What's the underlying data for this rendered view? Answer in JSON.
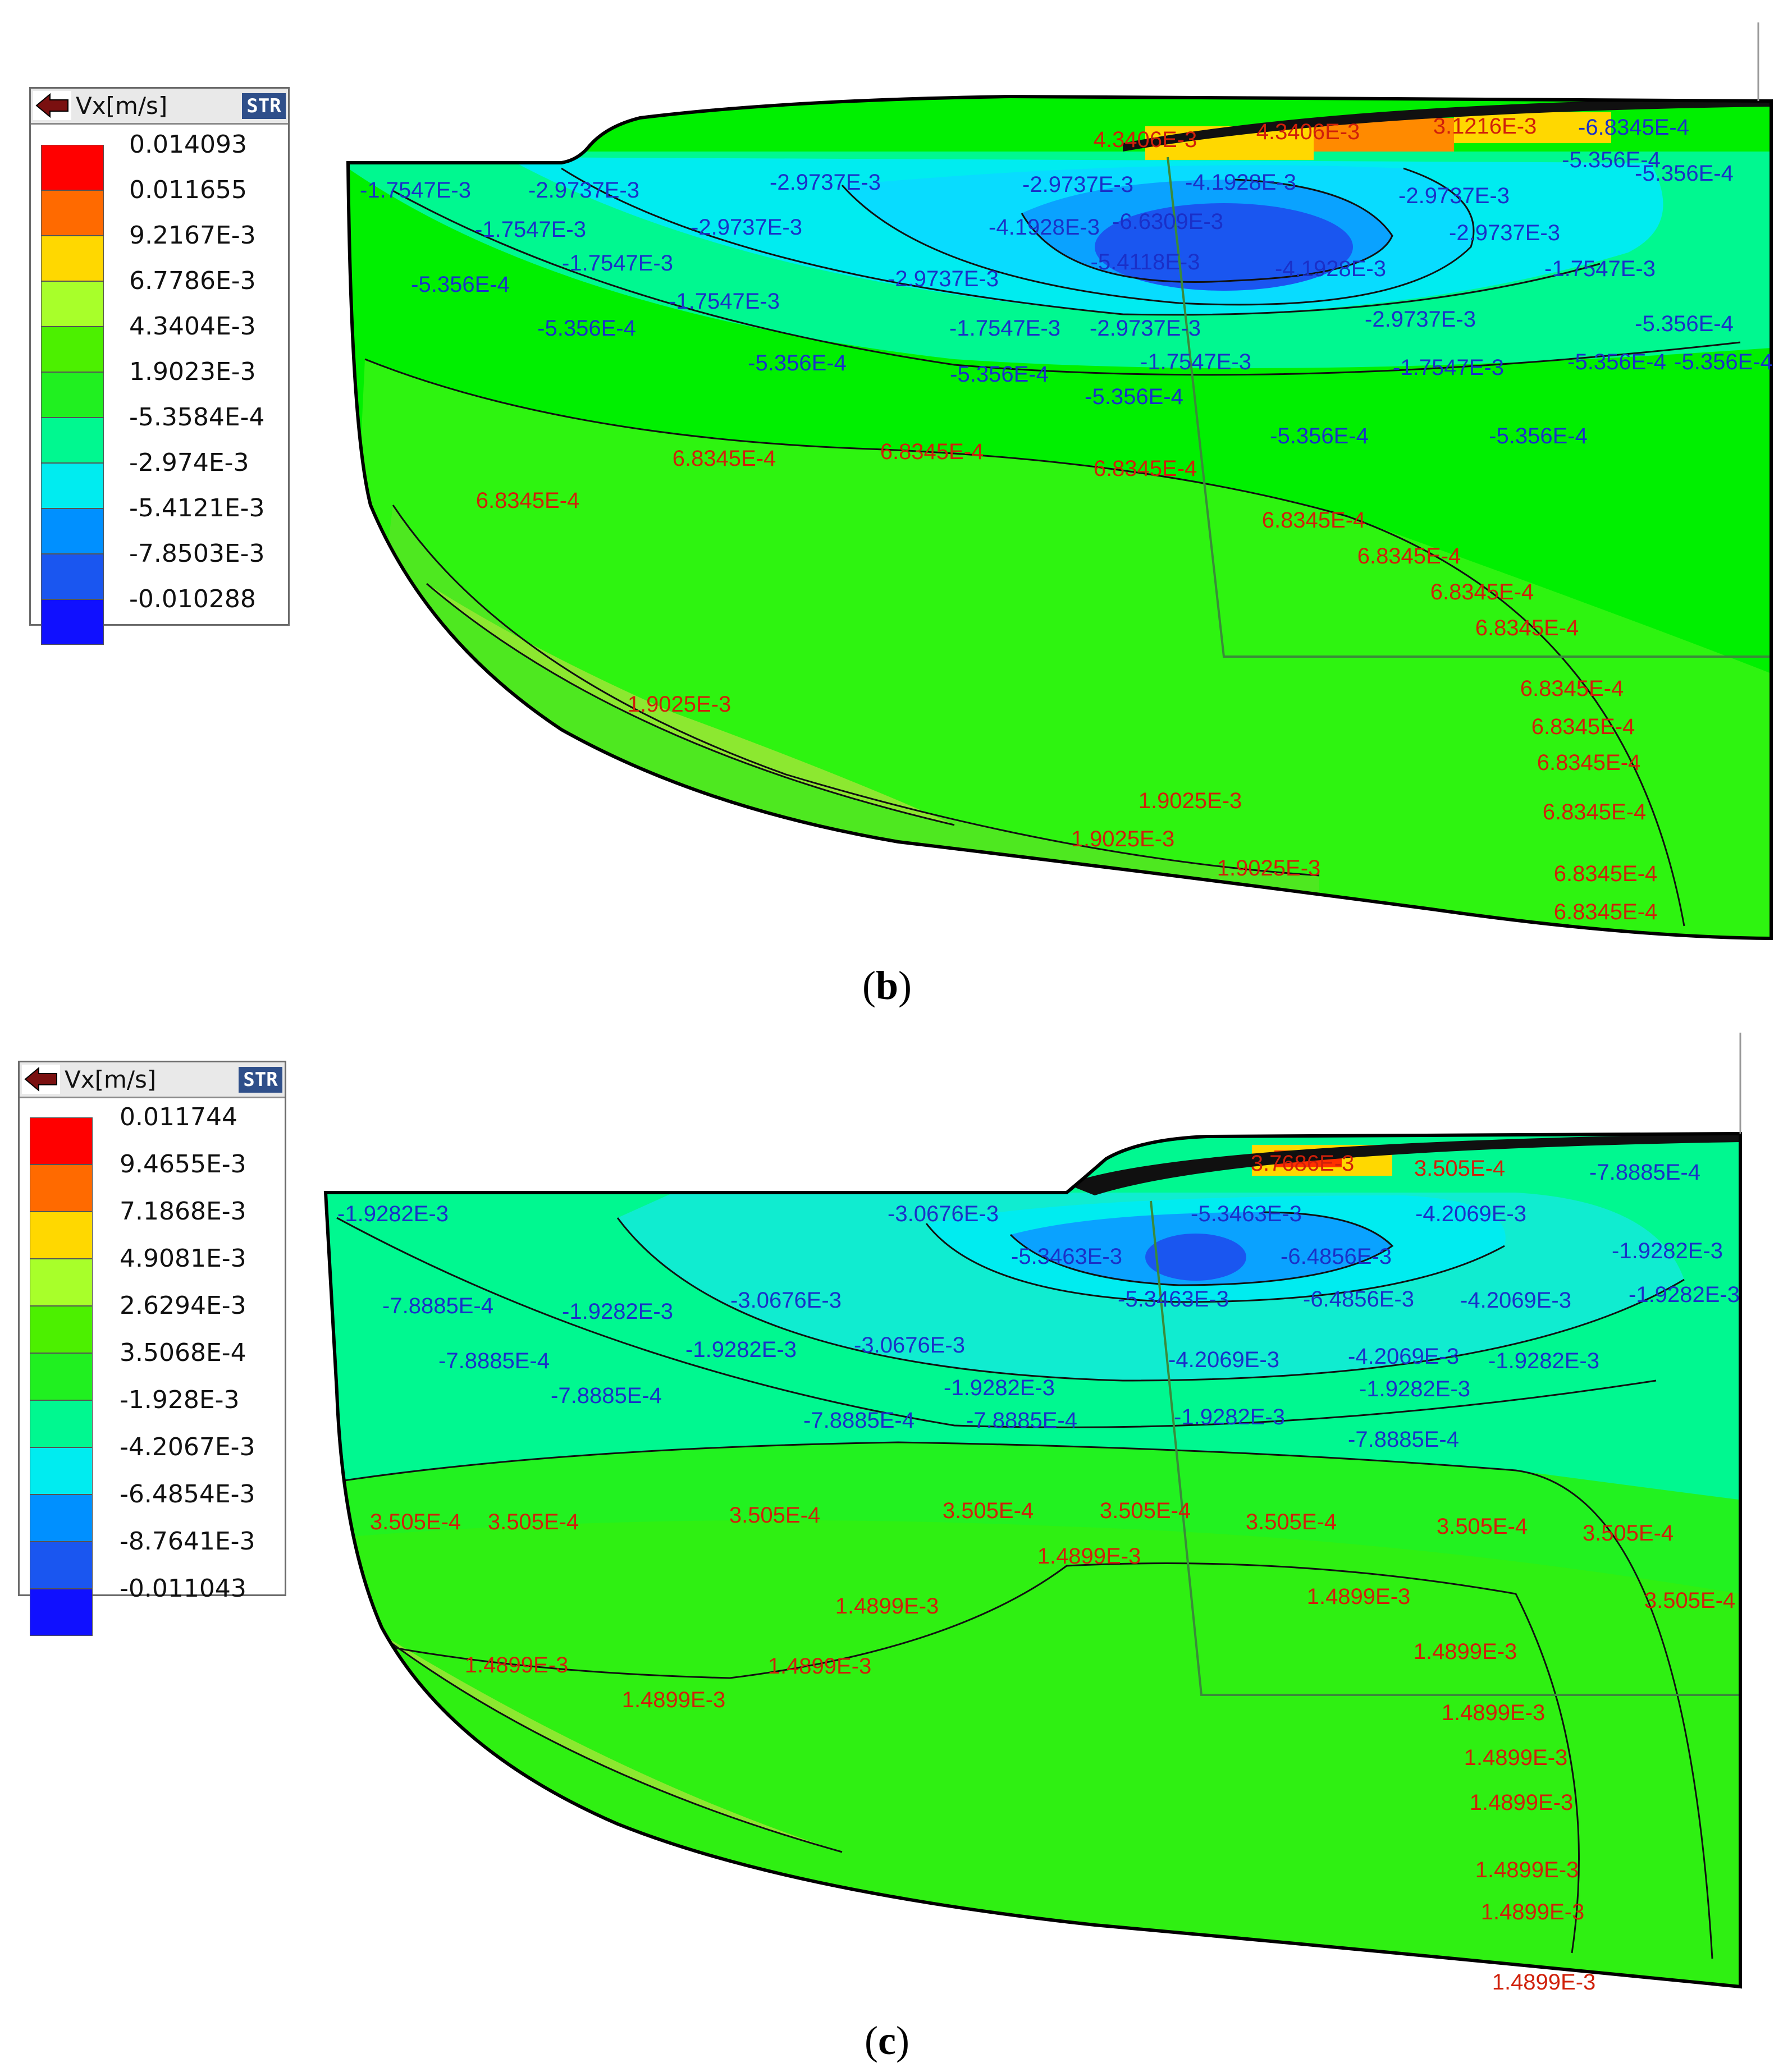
{
  "panels": [
    {
      "caption": "b",
      "legend": {
        "title": "Vx[m/s]",
        "str_button": "STR",
        "levels": [
          "0.014093",
          "0.011655",
          "9.2167E-3",
          "6.7786E-3",
          "4.3404E-3",
          "1.9023E-3",
          "-5.3584E-4",
          "-2.974E-3",
          "-5.4121E-3",
          "-7.8503E-3",
          "-0.010288"
        ],
        "colors": [
          "#ff0000",
          "#ff6a00",
          "#ffd800",
          "#a8ff2a",
          "#4cf000",
          "#20f020",
          "#00f890",
          "#00ecf0",
          "#0090ff",
          "#1a56f0",
          "#1010ff"
        ]
      },
      "contour_labels": [
        {
          "text": "4.3406E-3",
          "color": "#d0200a"
        },
        {
          "text": "4.3406E-3",
          "color": "#d0200a"
        },
        {
          "text": "3.1216E-3",
          "color": "#d0200a"
        },
        {
          "text": "-6.8345E-4",
          "color": "#1a30c8"
        },
        {
          "text": "-5.356E-4",
          "color": "#1a30c8"
        },
        {
          "text": "-5.356E-4",
          "color": "#1a30c8"
        },
        {
          "text": "-1.7547E-3",
          "color": "#1a30c8"
        },
        {
          "text": "-2.9737E-3",
          "color": "#1a30c8"
        },
        {
          "text": "-2.9737E-3",
          "color": "#1a30c8"
        },
        {
          "text": "-2.9737E-3",
          "color": "#1a30c8"
        },
        {
          "text": "-4.1928E-3",
          "color": "#1a30c8"
        },
        {
          "text": "-2.9737E-3",
          "color": "#1a30c8"
        },
        {
          "text": "-1.7547E-3",
          "color": "#1a30c8"
        },
        {
          "text": "-2.9737E-3",
          "color": "#1a30c8"
        },
        {
          "text": "-4.1928E-3",
          "color": "#1a30c8"
        },
        {
          "text": "-6.6309E-3",
          "color": "#1a30c8"
        },
        {
          "text": "-2.9737E-3",
          "color": "#1a30c8"
        },
        {
          "text": "-5.356E-4",
          "color": "#1a30c8"
        },
        {
          "text": "-1.7547E-3",
          "color": "#1a30c8"
        },
        {
          "text": "-2.9737E-3",
          "color": "#1a30c8"
        },
        {
          "text": "-5.4118E-3",
          "color": "#1a30c8"
        },
        {
          "text": "-4.1928E-3",
          "color": "#1a30c8"
        },
        {
          "text": "-1.7547E-3",
          "color": "#1a30c8"
        },
        {
          "text": "-1.7547E-3",
          "color": "#1a30c8"
        },
        {
          "text": "-1.7547E-3",
          "color": "#1a30c8"
        },
        {
          "text": "-2.9737E-3",
          "color": "#1a30c8"
        },
        {
          "text": "-2.9737E-3",
          "color": "#1a30c8"
        },
        {
          "text": "-5.356E-4",
          "color": "#1a30c8"
        },
        {
          "text": "-5.356E-4",
          "color": "#1a30c8"
        },
        {
          "text": "-1.7547E-3",
          "color": "#1a30c8"
        },
        {
          "text": "-1.7547E-3",
          "color": "#1a30c8"
        },
        {
          "text": "-5.356E-4",
          "color": "#1a30c8"
        },
        {
          "text": "-5.356E-4",
          "color": "#1a30c8"
        },
        {
          "text": "-5.356E-4",
          "color": "#1a30c8"
        },
        {
          "text": "-5.356E-4",
          "color": "#1a30c8"
        },
        {
          "text": "-5.356E-4",
          "color": "#1a30c8"
        },
        {
          "text": "-5.356E-4",
          "color": "#1a30c8"
        },
        {
          "text": "-5.356E-4",
          "color": "#1a30c8"
        },
        {
          "text": "6.8345E-4",
          "color": "#d0200a"
        },
        {
          "text": "6.8345E-4",
          "color": "#d0200a"
        },
        {
          "text": "6.8345E-4",
          "color": "#d0200a"
        },
        {
          "text": "6.8345E-4",
          "color": "#d0200a"
        },
        {
          "text": "6.8345E-4",
          "color": "#d0200a"
        },
        {
          "text": "6.8345E-4",
          "color": "#d0200a"
        },
        {
          "text": "6.8345E-4",
          "color": "#d0200a"
        },
        {
          "text": "6.8345E-4",
          "color": "#d0200a"
        },
        {
          "text": "6.8345E-4",
          "color": "#d0200a"
        },
        {
          "text": "6.8345E-4",
          "color": "#d0200a"
        },
        {
          "text": "6.8345E-4",
          "color": "#d0200a"
        },
        {
          "text": "6.8345E-4",
          "color": "#d0200a"
        },
        {
          "text": "6.8345E-4",
          "color": "#d0200a"
        },
        {
          "text": "6.8345E-4",
          "color": "#d0200a"
        },
        {
          "text": "1.9025E-3",
          "color": "#d0200a"
        },
        {
          "text": "1.9025E-3",
          "color": "#d0200a"
        },
        {
          "text": "1.9025E-3",
          "color": "#d0200a"
        },
        {
          "text": "1.9025E-3",
          "color": "#d0200a"
        }
      ]
    },
    {
      "caption": "c",
      "legend": {
        "title": "Vx[m/s]",
        "str_button": "STR",
        "levels": [
          "0.011744",
          "9.4655E-3",
          "7.1868E-3",
          "4.9081E-3",
          "2.6294E-3",
          "3.5068E-4",
          "-1.928E-3",
          "-4.2067E-3",
          "-6.4854E-3",
          "-8.7641E-3",
          "-0.011043"
        ],
        "colors": [
          "#ff0000",
          "#ff6a00",
          "#ffd800",
          "#a8ff2a",
          "#4cf000",
          "#20f020",
          "#00f890",
          "#00ecf0",
          "#0090ff",
          "#1a56f0",
          "#1010ff"
        ]
      },
      "contour_labels": [
        {
          "text": "3.7686E-3",
          "color": "#d0200a"
        },
        {
          "text": "3.505E-4",
          "color": "#d0200a"
        },
        {
          "text": "-7.8885E-4",
          "color": "#1a30c8"
        },
        {
          "text": "-1.9282E-3",
          "color": "#1a30c8"
        },
        {
          "text": "-3.0676E-3",
          "color": "#1a30c8"
        },
        {
          "text": "-5.3463E-3",
          "color": "#1a30c8"
        },
        {
          "text": "-4.2069E-3",
          "color": "#1a30c8"
        },
        {
          "text": "-5.3463E-3",
          "color": "#1a30c8"
        },
        {
          "text": "-6.4856E-3",
          "color": "#1a30c8"
        },
        {
          "text": "-1.9282E-3",
          "color": "#1a30c8"
        },
        {
          "text": "-7.8885E-4",
          "color": "#1a30c8"
        },
        {
          "text": "-1.9282E-3",
          "color": "#1a30c8"
        },
        {
          "text": "-3.0676E-3",
          "color": "#1a30c8"
        },
        {
          "text": "-5.3463E-3",
          "color": "#1a30c8"
        },
        {
          "text": "-6.4856E-3",
          "color": "#1a30c8"
        },
        {
          "text": "-4.2069E-3",
          "color": "#1a30c8"
        },
        {
          "text": "-1.9282E-3",
          "color": "#1a30c8"
        },
        {
          "text": "-7.8885E-4",
          "color": "#1a30c8"
        },
        {
          "text": "-1.9282E-3",
          "color": "#1a30c8"
        },
        {
          "text": "-3.0676E-3",
          "color": "#1a30c8"
        },
        {
          "text": "-4.2069E-3",
          "color": "#1a30c8"
        },
        {
          "text": "-4.2069E-3",
          "color": "#1a30c8"
        },
        {
          "text": "-1.9282E-3",
          "color": "#1a30c8"
        },
        {
          "text": "-7.8885E-4",
          "color": "#1a30c8"
        },
        {
          "text": "-1.9282E-3",
          "color": "#1a30c8"
        },
        {
          "text": "-1.9282E-3",
          "color": "#1a30c8"
        },
        {
          "text": "-7.8885E-4",
          "color": "#1a30c8"
        },
        {
          "text": "-7.8885E-4",
          "color": "#1a30c8"
        },
        {
          "text": "-1.9282E-3",
          "color": "#1a30c8"
        },
        {
          "text": "-7.8885E-4",
          "color": "#1a30c8"
        },
        {
          "text": "3.505E-4",
          "color": "#d0200a"
        },
        {
          "text": "3.505E-4",
          "color": "#d0200a"
        },
        {
          "text": "3.505E-4",
          "color": "#d0200a"
        },
        {
          "text": "3.505E-4",
          "color": "#d0200a"
        },
        {
          "text": "3.505E-4",
          "color": "#d0200a"
        },
        {
          "text": "3.505E-4",
          "color": "#d0200a"
        },
        {
          "text": "3.505E-4",
          "color": "#d0200a"
        },
        {
          "text": "3.505E-4",
          "color": "#d0200a"
        },
        {
          "text": "3.505E-4",
          "color": "#d0200a"
        },
        {
          "text": "1.4899E-3",
          "color": "#d0200a"
        },
        {
          "text": "1.4899E-3",
          "color": "#d0200a"
        },
        {
          "text": "1.4899E-3",
          "color": "#d0200a"
        },
        {
          "text": "1.4899E-3",
          "color": "#d0200a"
        },
        {
          "text": "1.4899E-3",
          "color": "#d0200a"
        },
        {
          "text": "1.4899E-3",
          "color": "#d0200a"
        },
        {
          "text": "1.4899E-3",
          "color": "#d0200a"
        },
        {
          "text": "1.4899E-3",
          "color": "#d0200a"
        },
        {
          "text": "1.4899E-3",
          "color": "#d0200a"
        },
        {
          "text": "1.4899E-3",
          "color": "#d0200a"
        },
        {
          "text": "1.4899E-3",
          "color": "#d0200a"
        },
        {
          "text": "1.4899E-3",
          "color": "#d0200a"
        },
        {
          "text": "1.4899E-3",
          "color": "#d0200a"
        }
      ]
    }
  ],
  "chart_data": [
    {
      "type": "heatmap",
      "quantity": "Vx[m/s]",
      "colorbar_levels": [
        0.014093,
        0.011655,
        0.0092167,
        0.0067786,
        0.0043404,
        0.0019023,
        -0.00053584,
        -0.002974,
        -0.0054121,
        -0.0078503,
        -0.010288
      ],
      "contour_levels_labeled": [
        0.0043406,
        0.0031216,
        -0.00068345,
        -0.0005356,
        -0.0017547,
        -0.0029737,
        -0.0041928,
        -0.0054118,
        -0.0066309,
        0.00068345,
        0.0019025
      ]
    },
    {
      "type": "heatmap",
      "quantity": "Vx[m/s]",
      "colorbar_levels": [
        0.011744,
        0.0094655,
        0.0071868,
        0.0049081,
        0.0026294,
        0.00035068,
        -0.001928,
        -0.0042067,
        -0.0064854,
        -0.0087641,
        -0.011043
      ],
      "contour_levels_labeled": [
        0.0037686,
        0.0003505,
        -0.00078885,
        -0.0019282,
        -0.0030676,
        -0.0042069,
        -0.0053463,
        -0.0064856,
        0.0014899
      ]
    }
  ]
}
